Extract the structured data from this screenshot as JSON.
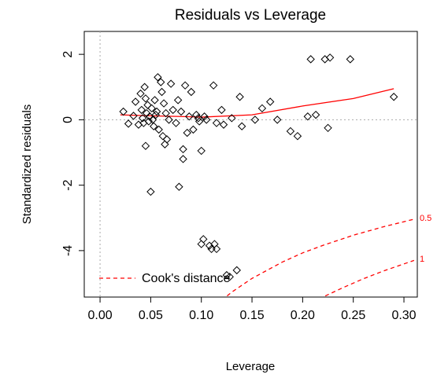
{
  "chart_data": {
    "type": "scatter",
    "title": "Residuals vs Leverage",
    "x_label": "Leverage",
    "y_label": "Standardized residuals",
    "xlim": [
      -0.0156,
      0.3132
    ],
    "ylim": [
      -5.42,
      2.7
    ],
    "xticks": [
      {
        "value": 0,
        "label": "0.00"
      },
      {
        "value": 0.05,
        "label": "0.05"
      },
      {
        "value": 0.1,
        "label": "0.10"
      },
      {
        "value": 0.15,
        "label": "0.15"
      },
      {
        "value": 0.2,
        "label": "0.20"
      },
      {
        "value": 0.25,
        "label": "0.25"
      },
      {
        "value": 0.3,
        "label": "0.30"
      }
    ],
    "yticks": [
      2,
      0,
      -2,
      -4
    ],
    "reference_lines": {
      "x": 0,
      "y": 0
    },
    "points": {
      "color": "#000000",
      "x": [
        0.023,
        0.028,
        0.033,
        0.035,
        0.038,
        0.04,
        0.041,
        0.042,
        0.043,
        0.044,
        0.045,
        0.045,
        0.046,
        0.047,
        0.048,
        0.049,
        0.05,
        0.051,
        0.052,
        0.053,
        0.054,
        0.055,
        0.056,
        0.057,
        0.058,
        0.06,
        0.061,
        0.062,
        0.063,
        0.064,
        0.065,
        0.066,
        0.068,
        0.07,
        0.072,
        0.075,
        0.077,
        0.078,
        0.08,
        0.082,
        0.082,
        0.084,
        0.086,
        0.088,
        0.09,
        0.092,
        0.095,
        0.097,
        0.098,
        0.1,
        0.1,
        0.102,
        0.103,
        0.105,
        0.108,
        0.11,
        0.112,
        0.113,
        0.115,
        0.115,
        0.12,
        0.122,
        0.125,
        0.128,
        0.13,
        0.135,
        0.138,
        0.14,
        0.153,
        0.16,
        0.168,
        0.175,
        0.188,
        0.195,
        0.205,
        0.208,
        0.213,
        0.222,
        0.225,
        0.227,
        0.247,
        0.29
      ],
      "values": [
        0.25,
        -0.12,
        0.12,
        0.55,
        -0.15,
        0.8,
        0.3,
        0.05,
        -0.1,
        1.0,
        0.65,
        -0.8,
        0.2,
        0.45,
        -0.05,
        0.1,
        -2.2,
        0.35,
        0.0,
        -0.2,
        0.6,
        0.15,
        0.25,
        1.3,
        -0.3,
        1.15,
        0.85,
        -0.5,
        0.5,
        -0.75,
        0.2,
        -0.6,
        0.0,
        1.1,
        0.3,
        -0.1,
        0.6,
        -2.05,
        0.25,
        -0.9,
        -1.2,
        1.05,
        -0.4,
        0.1,
        0.85,
        -0.3,
        0.15,
        0.05,
        -0.05,
        -0.95,
        -3.8,
        -3.65,
        0.1,
        0.0,
        -3.85,
        -3.95,
        1.05,
        -3.8,
        -3.95,
        -0.1,
        0.3,
        -0.15,
        -4.75,
        -4.8,
        0.05,
        -4.6,
        0.7,
        -0.2,
        0.0,
        0.35,
        0.55,
        0.0,
        -0.35,
        -0.5,
        0.1,
        1.85,
        0.15,
        1.85,
        -0.25,
        1.9,
        1.85,
        0.7
      ]
    },
    "smooth": {
      "color": "#ff0000",
      "x": [
        0.02,
        0.05,
        0.08,
        0.1,
        0.15,
        0.2,
        0.25,
        0.29
      ],
      "values": [
        0.15,
        0.12,
        0.1,
        0.08,
        0.15,
        0.42,
        0.65,
        0.95
      ]
    },
    "cooks": {
      "name": "Cook's distance",
      "color": "#ff0000",
      "curves": [
        {
          "label": "0.5",
          "x": [
            0.12,
            0.13,
            0.15,
            0.18,
            0.2,
            0.22,
            0.25,
            0.28,
            0.31
          ],
          "values": [
            -5.52,
            -5.27,
            -4.85,
            -4.35,
            -4.07,
            -3.84,
            -3.53,
            -3.27,
            -3.04
          ]
        },
        {
          "label": "1",
          "x": [
            0.21,
            0.22,
            0.24,
            0.26,
            0.28,
            0.31
          ],
          "values": [
            -5.59,
            -5.42,
            -5.13,
            -4.86,
            -4.62,
            -4.3
          ]
        }
      ]
    }
  }
}
